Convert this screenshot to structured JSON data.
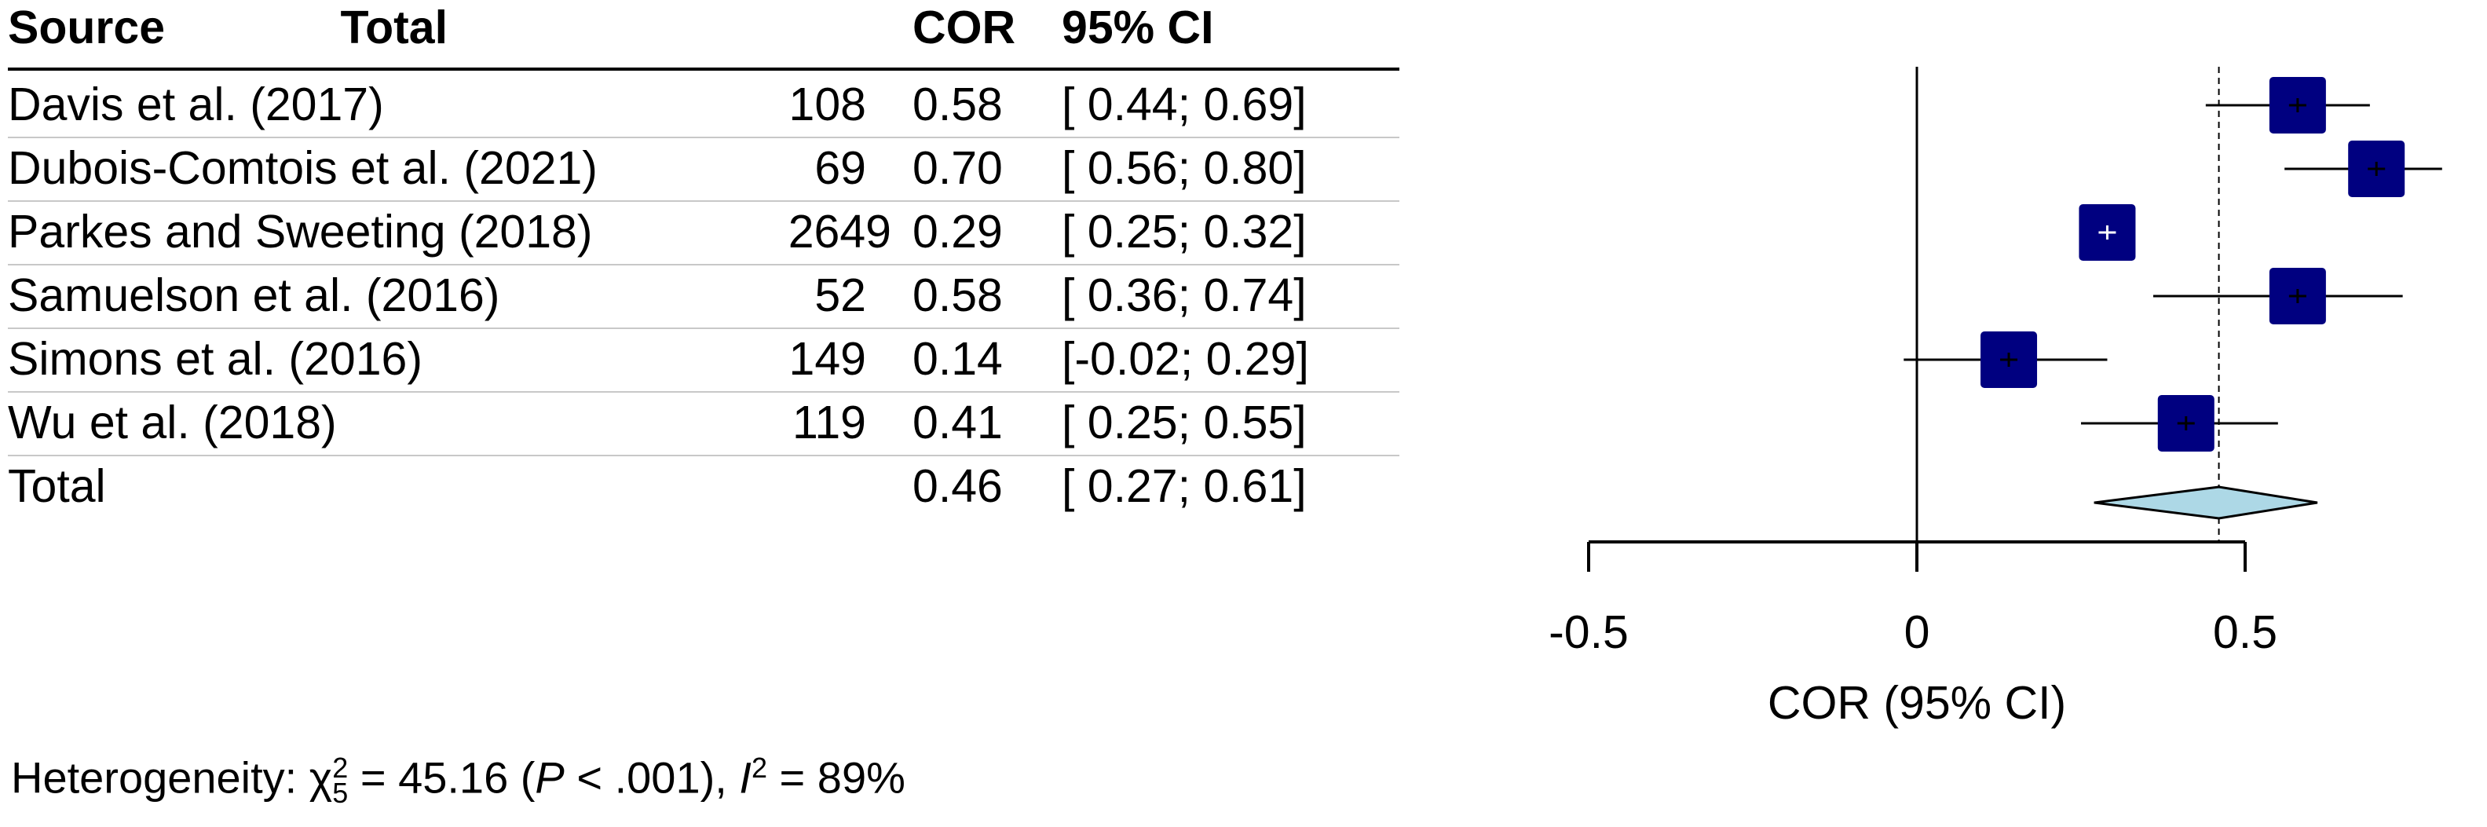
{
  "table": {
    "headers": {
      "source": "Source",
      "total": "Total",
      "cor": "COR",
      "ci": "95% CI"
    },
    "rows": [
      {
        "source": "Davis et al. (2017)",
        "total": "108",
        "cor": "0.58",
        "ci": "[ 0.44; 0.69]"
      },
      {
        "source": "Dubois-Comtois et al. (2021)",
        "total": "69",
        "cor": "0.70",
        "ci": "[ 0.56; 0.80]"
      },
      {
        "source": "Parkes and Sweeting (2018)",
        "total": "2649",
        "cor": "0.29",
        "ci": "[ 0.25; 0.32]"
      },
      {
        "source": "Samuelson et al. (2016)",
        "total": "52",
        "cor": "0.58",
        "ci": "[ 0.36; 0.74]"
      },
      {
        "source": "Simons et al. (2016)",
        "total": "149",
        "cor": "0.14",
        "ci": "[-0.02; 0.29]"
      },
      {
        "source": "Wu et al. (2018)",
        "total": "119",
        "cor": "0.41",
        "ci": "[ 0.25; 0.55]"
      }
    ],
    "total_row": {
      "source": "Total",
      "total": "",
      "cor": "0.46",
      "ci": "[ 0.27; 0.61]"
    }
  },
  "heterogeneity": {
    "label": "Heterogeneity:",
    "chi_symbol": "χ",
    "chi_sub": "5",
    "chi_sup": "2",
    "chi_value": "= 45.16 (",
    "p_symbol": "P",
    "p_value": " < .001),",
    "i_symbol": "I",
    "i_sup": "2",
    "i_value": "= 89%"
  },
  "chart_data": {
    "type": "forest",
    "xlabel": "COR (95% CI)",
    "xlim": [
      -0.5,
      0.81
    ],
    "ticks": [
      -0.5,
      0,
      0.5
    ],
    "tick_labels": [
      "-0.5",
      "0",
      "0.5"
    ],
    "null_line": 0,
    "summary_line": 0.46,
    "colors": {
      "square": "#000080",
      "diamond": "#add8e6"
    },
    "studies": [
      {
        "name": "Davis et al. (2017)",
        "estimate": 0.58,
        "lower": 0.44,
        "upper": 0.69,
        "weight": 108
      },
      {
        "name": "Dubois-Comtois et al. (2021)",
        "estimate": 0.7,
        "lower": 0.56,
        "upper": 0.8,
        "weight": 69
      },
      {
        "name": "Parkes and Sweeting (2018)",
        "estimate": 0.29,
        "lower": 0.25,
        "upper": 0.32,
        "weight": 2649
      },
      {
        "name": "Samuelson et al. (2016)",
        "estimate": 0.58,
        "lower": 0.36,
        "upper": 0.74,
        "weight": 52
      },
      {
        "name": "Simons et al. (2016)",
        "estimate": 0.14,
        "lower": -0.02,
        "upper": 0.29,
        "weight": 149
      },
      {
        "name": "Wu et al. (2018)",
        "estimate": 0.41,
        "lower": 0.25,
        "upper": 0.55,
        "weight": 119
      }
    ],
    "summary": {
      "name": "Total",
      "estimate": 0.46,
      "lower": 0.27,
      "upper": 0.61
    }
  }
}
